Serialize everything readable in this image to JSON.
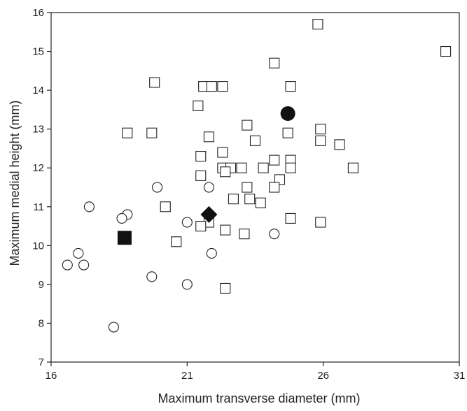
{
  "chart_data": {
    "type": "scatter",
    "title": "",
    "xlabel": "Maximum transverse diameter (mm)",
    "ylabel": "Maximum medial height (mm)",
    "xlim": [
      16,
      31
    ],
    "ylim": [
      7,
      16
    ],
    "xticks": [
      16,
      21,
      26,
      31
    ],
    "yticks": [
      7,
      8,
      9,
      10,
      11,
      12,
      13,
      14,
      15,
      16
    ],
    "grid": false,
    "legend": "none",
    "series": [
      {
        "marker": "open-square",
        "points": [
          [
            25.8,
            15.7
          ],
          [
            30.5,
            15.0
          ],
          [
            24.2,
            14.7
          ],
          [
            19.8,
            14.2
          ],
          [
            21.6,
            14.1
          ],
          [
            21.9,
            14.1
          ],
          [
            22.3,
            14.1
          ],
          [
            24.8,
            14.1
          ],
          [
            21.4,
            13.6
          ],
          [
            23.2,
            13.1
          ],
          [
            25.9,
            13.0
          ],
          [
            18.8,
            12.9
          ],
          [
            19.7,
            12.9
          ],
          [
            24.7,
            12.9
          ],
          [
            21.8,
            12.8
          ],
          [
            23.5,
            12.7
          ],
          [
            25.9,
            12.7
          ],
          [
            26.6,
            12.6
          ],
          [
            22.3,
            12.4
          ],
          [
            21.5,
            12.3
          ],
          [
            24.2,
            12.2
          ],
          [
            24.8,
            12.2
          ],
          [
            22.3,
            12.0
          ],
          [
            22.6,
            12.0
          ],
          [
            23.0,
            12.0
          ],
          [
            23.8,
            12.0
          ],
          [
            24.8,
            12.0
          ],
          [
            27.1,
            12.0
          ],
          [
            21.5,
            11.8
          ],
          [
            22.4,
            11.9
          ],
          [
            24.4,
            11.7
          ],
          [
            23.2,
            11.5
          ],
          [
            24.2,
            11.5
          ],
          [
            23.3,
            11.2
          ],
          [
            22.7,
            11.2
          ],
          [
            23.7,
            11.1
          ],
          [
            20.2,
            11.0
          ],
          [
            24.8,
            10.7
          ],
          [
            25.9,
            10.6
          ],
          [
            21.8,
            10.6
          ],
          [
            21.5,
            10.5
          ],
          [
            22.4,
            10.4
          ],
          [
            23.1,
            10.3
          ],
          [
            20.6,
            10.1
          ],
          [
            22.4,
            8.9
          ]
        ]
      },
      {
        "marker": "open-circle",
        "points": [
          [
            17.4,
            11.0
          ],
          [
            19.9,
            11.5
          ],
          [
            21.8,
            11.5
          ],
          [
            18.8,
            10.8
          ],
          [
            18.6,
            10.7
          ],
          [
            21.0,
            10.6
          ],
          [
            24.2,
            10.3
          ],
          [
            17.0,
            9.8
          ],
          [
            21.9,
            9.8
          ],
          [
            16.6,
            9.5
          ],
          [
            17.2,
            9.5
          ],
          [
            19.7,
            9.2
          ],
          [
            21.0,
            9.0
          ],
          [
            18.3,
            7.9
          ]
        ]
      },
      {
        "marker": "filled-square",
        "points": [
          [
            18.7,
            10.2
          ]
        ]
      },
      {
        "marker": "filled-circle",
        "points": [
          [
            24.7,
            13.4
          ]
        ]
      },
      {
        "marker": "filled-diamond",
        "points": [
          [
            21.8,
            10.8
          ]
        ]
      }
    ]
  }
}
